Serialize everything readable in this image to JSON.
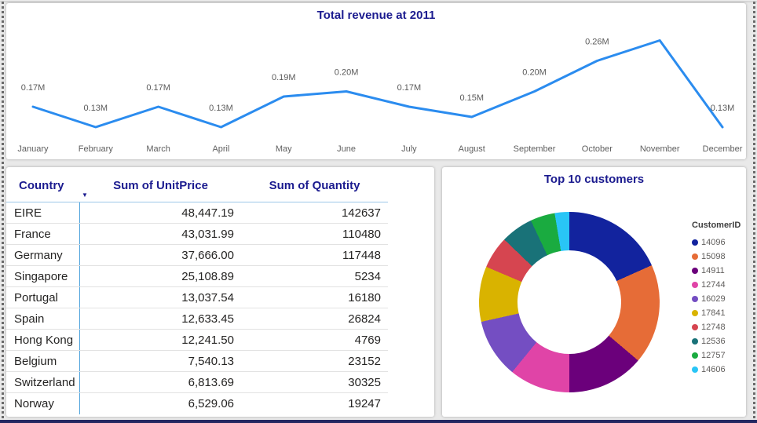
{
  "theme": {
    "page_background": "#E9E9E9",
    "card_background": "#FFFFFF",
    "title_color": "#1B1B8F",
    "line_color": "#2B8CEF",
    "axis_label_color": "#5F5F5F",
    "data_label_color": "#5A5A5A",
    "table_text_color": "#252423",
    "column_separator_color": "#4FA3DC",
    "header_underline_color": "#9CC8E8",
    "row_line_color": "#E2E2E2",
    "legend_text_color": "#605E5C",
    "bottom_bar_color": "#232761",
    "dash_border_color": "#6A6A6A"
  },
  "chart_data": [
    {
      "type": "line",
      "title": "Total revenue at 2011",
      "x": [
        "January",
        "February",
        "March",
        "April",
        "May",
        "June",
        "July",
        "August",
        "September",
        "October",
        "November",
        "December"
      ],
      "series": [
        {
          "name": "Total revenue",
          "values": [
            0.17,
            0.13,
            0.17,
            0.13,
            0.19,
            0.2,
            0.17,
            0.15,
            0.2,
            0.26,
            0.3,
            0.13
          ]
        }
      ],
      "point_labels": [
        "0.17M",
        "0.13M",
        "0.17M",
        "0.13M",
        "0.19M",
        "0.20M",
        "0.17M",
        "0.15M",
        "0.20M",
        "0.26M",
        "",
        "0.13M"
      ],
      "unit": "M",
      "ylim": [
        0.1,
        0.33
      ],
      "grid": false,
      "legend": "none"
    },
    {
      "type": "table",
      "columns": [
        "Country",
        "Sum of UnitPrice",
        "Sum of Quantity"
      ],
      "sort": {
        "column": "Country",
        "direction": "descending",
        "icon": "▼"
      },
      "rows": [
        [
          "EIRE",
          "48,447.19",
          "142637"
        ],
        [
          "France",
          "43,031.99",
          "110480"
        ],
        [
          "Germany",
          "37,666.00",
          "117448"
        ],
        [
          "Singapore",
          "25,108.89",
          "5234"
        ],
        [
          "Portugal",
          "13,037.54",
          "16180"
        ],
        [
          "Spain",
          "12,633.45",
          "26824"
        ],
        [
          "Hong Kong",
          "12,241.50",
          "4769"
        ],
        [
          "Belgium",
          "7,540.13",
          "23152"
        ],
        [
          "Switzerland",
          "6,813.69",
          "30325"
        ],
        [
          "Norway",
          "6,529.06",
          "19247"
        ]
      ]
    },
    {
      "type": "donut",
      "title": "Top 10 customers",
      "legend_title": "CustomerID",
      "legend_position": "right",
      "segments": [
        {
          "id": "14096",
          "color": "#12239E",
          "pct": 18.3
        },
        {
          "id": "15098",
          "color": "#E66C37",
          "pct": 17.9
        },
        {
          "id": "14911",
          "color": "#6B007B",
          "pct": 13.8
        },
        {
          "id": "12744",
          "color": "#E044A7",
          "pct": 10.9
        },
        {
          "id": "16029",
          "color": "#744EC2",
          "pct": 10.6
        },
        {
          "id": "17841",
          "color": "#D9B300",
          "pct": 9.9
        },
        {
          "id": "12748",
          "color": "#D64550",
          "pct": 5.8
        },
        {
          "id": "12536",
          "color": "#197278",
          "pct": 5.8
        },
        {
          "id": "12757",
          "color": "#1AAB40",
          "pct": 4.4
        },
        {
          "id": "14606",
          "color": "#29C5F6",
          "pct": 2.6
        }
      ]
    }
  ]
}
